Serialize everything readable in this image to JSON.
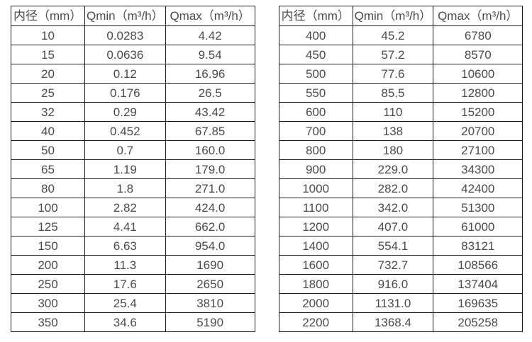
{
  "page": {
    "background_color": "#ffffff",
    "text_color": "#4b4b4b",
    "border_color": "#1c1c1c"
  },
  "tables": [
    {
      "name": "flow-spec-table-small-diameters",
      "headers": [
        "内径（mm）",
        "Qmin（m³/h）",
        "Qmax（m³/h）"
      ],
      "rows": [
        [
          "10",
          "0.0283",
          "4.42"
        ],
        [
          "15",
          "0.0636",
          "9.54"
        ],
        [
          "20",
          "0.12",
          "16.96"
        ],
        [
          "25",
          "0.176",
          "26.5"
        ],
        [
          "32",
          "0.29",
          "43.42"
        ],
        [
          "40",
          "0.452",
          "67.85"
        ],
        [
          "50",
          "0.7",
          "160.0"
        ],
        [
          "65",
          "1.19",
          "179.0"
        ],
        [
          "80",
          "1.8",
          "271.0"
        ],
        [
          "100",
          "2.82",
          "424.0"
        ],
        [
          "125",
          "4.41",
          "662.0"
        ],
        [
          "150",
          "6.63",
          "954.0"
        ],
        [
          "200",
          "11.3",
          "1690"
        ],
        [
          "250",
          "17.6",
          "2650"
        ],
        [
          "300",
          "25.4",
          "3810"
        ],
        [
          "350",
          "34.6",
          "5190"
        ]
      ]
    },
    {
      "name": "flow-spec-table-large-diameters",
      "headers": [
        "内径（mm）",
        "Qmin（m³/h）",
        "Qmax（m³/h）"
      ],
      "rows": [
        [
          "400",
          "45.2",
          "6780"
        ],
        [
          "450",
          "57.2",
          "8570"
        ],
        [
          "500",
          "77.6",
          "10600"
        ],
        [
          "550",
          "85.5",
          "12800"
        ],
        [
          "600",
          "110",
          "15200"
        ],
        [
          "700",
          "138",
          "20700"
        ],
        [
          "800",
          "180",
          "27100"
        ],
        [
          "900",
          "229.0",
          "34300"
        ],
        [
          "1000",
          "282.0",
          "42400"
        ],
        [
          "1100",
          "342.0",
          "51300"
        ],
        [
          "1200",
          "407.0",
          "61000"
        ],
        [
          "1400",
          "554.1",
          "83121"
        ],
        [
          "1600",
          "732.7",
          "108566"
        ],
        [
          "1800",
          "916.0",
          "137404"
        ],
        [
          "2000",
          "1131.0",
          "169635"
        ],
        [
          "2200",
          "1368.4",
          "205258"
        ]
      ]
    }
  ]
}
